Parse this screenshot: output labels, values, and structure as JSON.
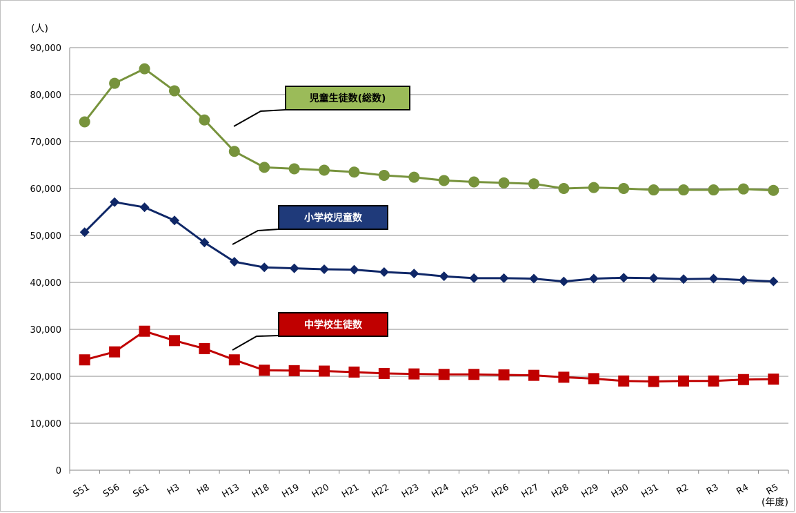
{
  "chart_data": {
    "type": "line",
    "ylabel": "(人)",
    "xlabel": "(年度)",
    "ylim": [
      0,
      90000
    ],
    "yticks": [
      0,
      10000,
      20000,
      30000,
      40000,
      50000,
      60000,
      70000,
      80000,
      90000
    ],
    "ytick_labels": [
      "0",
      "10,000",
      "20,000",
      "30,000",
      "40,000",
      "50,000",
      "60,000",
      "70,000",
      "80,000",
      "90,000"
    ],
    "grid": true,
    "categories": [
      "S51",
      "S56",
      "S61",
      "H3",
      "H8",
      "H13",
      "H18",
      "H19",
      "H20",
      "H21",
      "H22",
      "H23",
      "H24",
      "H25",
      "H26",
      "H27",
      "H28",
      "H29",
      "H30",
      "H31",
      "R2",
      "R3",
      "R4",
      "R5"
    ],
    "series": [
      {
        "name": "児童生徒数(総数)",
        "color": "#77933c",
        "marker": "circle",
        "label_bg": "#9bbb59",
        "label_fg": "#000000",
        "values": [
          74200,
          82400,
          85500,
          80800,
          74600,
          67900,
          64500,
          64200,
          63900,
          63500,
          62800,
          62400,
          61700,
          61400,
          61200,
          61000,
          60000,
          60200,
          60000,
          59700,
          59700,
          59700,
          59900,
          59600
        ]
      },
      {
        "name": "小学校児童数",
        "color": "#0f2767",
        "marker": "diamond",
        "label_bg": "#1f3a7a",
        "label_fg": "#ffffff",
        "values": [
          50700,
          57100,
          56000,
          53200,
          48500,
          44400,
          43200,
          43000,
          42800,
          42700,
          42200,
          41900,
          41300,
          40900,
          40900,
          40800,
          40200,
          40800,
          41000,
          40900,
          40700,
          40800,
          40500,
          40200
        ]
      },
      {
        "name": "中学校生徒数",
        "color": "#c00000",
        "marker": "square",
        "label_bg": "#c00000",
        "label_fg": "#ffffff",
        "values": [
          23500,
          25200,
          29600,
          27600,
          25900,
          23500,
          21300,
          21200,
          21100,
          20900,
          20600,
          20500,
          20400,
          20400,
          20300,
          20200,
          19800,
          19500,
          19000,
          18900,
          19000,
          19000,
          19300,
          19400
        ]
      }
    ]
  }
}
